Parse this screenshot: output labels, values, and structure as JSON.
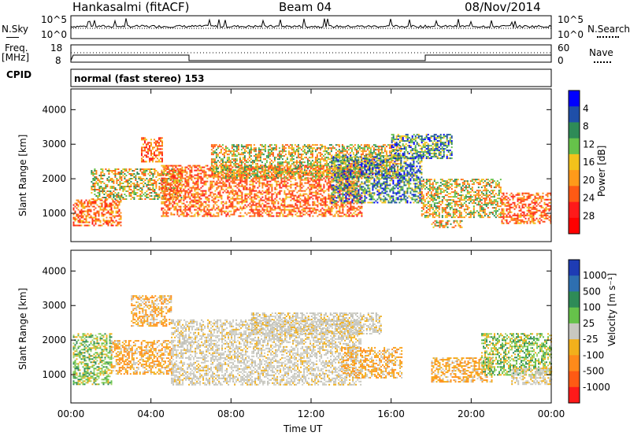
{
  "header": {
    "station": "Hankasalmi (fitACF)",
    "beam": "Beam 04",
    "date": "08/Nov/2014"
  },
  "nsky_panel": {
    "left_label": "N.Sky",
    "right_label": "N.Search",
    "tick_top": "10^5",
    "tick_bottom": "10^0",
    "right_tick_top": "10^5",
    "right_tick_bottom": "10^0"
  },
  "freq_panel": {
    "left_label_1": "Freq.",
    "left_label_2": "[MHz]",
    "tick_top": "18",
    "tick_bottom": "8",
    "right_label": "Nave",
    "right_tick_top": "60",
    "right_tick_bottom": "0"
  },
  "cpid": {
    "label": "CPID",
    "value": "normal (fast stereo) 153"
  },
  "chart_data": [
    {
      "type": "heatmap",
      "name": "power",
      "ylabel": "Slant Range [km]",
      "xlabel": "",
      "x_tick_labels": [
        "00:00",
        "04:00",
        "08:00",
        "12:00",
        "16:00",
        "20:00",
        "00:00"
      ],
      "x_ticks_hours": [
        0,
        4,
        8,
        12,
        16,
        20,
        24
      ],
      "y_ticks": [
        1000,
        2000,
        3000,
        4000
      ],
      "ylim": [
        180,
        4600
      ],
      "xlim_hours": [
        0,
        24
      ],
      "colorbar": {
        "label": "Power [dB]",
        "ticks": [
          "4",
          "8",
          "12",
          "16",
          "20",
          "24",
          "28"
        ],
        "colors": [
          "#0000ff",
          "#1f4fa8",
          "#2e8b57",
          "#66c24a",
          "#f2c21b",
          "#ff9a1a",
          "#ff5a14",
          "#ff1a1a",
          "#ff0000"
        ]
      },
      "regions": [
        {
          "t0": 0.1,
          "t1": 2.5,
          "r0": 650,
          "r1": 1400,
          "level": "high"
        },
        {
          "t0": 1.0,
          "t1": 5.5,
          "r0": 1400,
          "r1": 2300,
          "level": "mid"
        },
        {
          "t0": 3.5,
          "t1": 4.6,
          "r0": 2500,
          "r1": 3200,
          "level": "high"
        },
        {
          "t0": 4.5,
          "t1": 14.5,
          "r0": 900,
          "r1": 2400,
          "level": "high"
        },
        {
          "t0": 7.0,
          "t1": 16.5,
          "r0": 2000,
          "r1": 3000,
          "level": "mid"
        },
        {
          "t0": 13.0,
          "t1": 17.5,
          "r0": 1300,
          "r1": 2700,
          "level": "low"
        },
        {
          "t0": 17.5,
          "t1": 21.5,
          "r0": 900,
          "r1": 2000,
          "level": "mid"
        },
        {
          "t0": 18.0,
          "t1": 19.5,
          "r0": 600,
          "r1": 800,
          "level": "mid"
        },
        {
          "t0": 21.5,
          "t1": 24.0,
          "r0": 700,
          "r1": 1600,
          "level": "high"
        },
        {
          "t0": 16.0,
          "t1": 19.0,
          "r0": 2600,
          "r1": 3300,
          "level": "low"
        }
      ]
    },
    {
      "type": "heatmap",
      "name": "velocity",
      "ylabel": "Slant Range [km]",
      "xlabel": "Time UT",
      "x_tick_labels": [
        "00:00",
        "04:00",
        "08:00",
        "12:00",
        "16:00",
        "20:00",
        "00:00"
      ],
      "x_ticks_hours": [
        0,
        4,
        8,
        12,
        16,
        20,
        24
      ],
      "y_ticks": [
        1000,
        2000,
        3000,
        4000
      ],
      "ylim": [
        180,
        4600
      ],
      "xlim_hours": [
        0,
        24
      ],
      "colorbar": {
        "label": "Velocity [m s⁻¹]",
        "ticks": [
          "1000",
          "500",
          "100",
          "25",
          "-25",
          "-100",
          "-500",
          "-1000"
        ],
        "colors": [
          "#1e3cb4",
          "#2e6fb0",
          "#2e8b57",
          "#66c24a",
          "#c8c8c0",
          "#f2b01b",
          "#ff8a1a",
          "#ff5a14",
          "#ff1a1a"
        ]
      },
      "regions": [
        {
          "t0": 0.1,
          "t1": 2.0,
          "r0": 700,
          "r1": 2200,
          "level": "green"
        },
        {
          "t0": 2.0,
          "t1": 5.0,
          "r0": 1000,
          "r1": 2000,
          "level": "orange"
        },
        {
          "t0": 3.0,
          "t1": 5.0,
          "r0": 2400,
          "r1": 3300,
          "level": "orange"
        },
        {
          "t0": 5.0,
          "t1": 14.5,
          "r0": 700,
          "r1": 2600,
          "level": "grey"
        },
        {
          "t0": 9.0,
          "t1": 15.5,
          "r0": 2200,
          "r1": 2800,
          "level": "grey"
        },
        {
          "t0": 13.5,
          "t1": 16.5,
          "r0": 900,
          "r1": 1800,
          "level": "orange"
        },
        {
          "t0": 18.0,
          "t1": 21.0,
          "r0": 800,
          "r1": 1500,
          "level": "orange"
        },
        {
          "t0": 20.5,
          "t1": 24.0,
          "r0": 1000,
          "r1": 2200,
          "level": "green"
        },
        {
          "t0": 22.0,
          "t1": 24.0,
          "r0": 700,
          "r1": 1200,
          "level": "grey"
        }
      ]
    }
  ]
}
